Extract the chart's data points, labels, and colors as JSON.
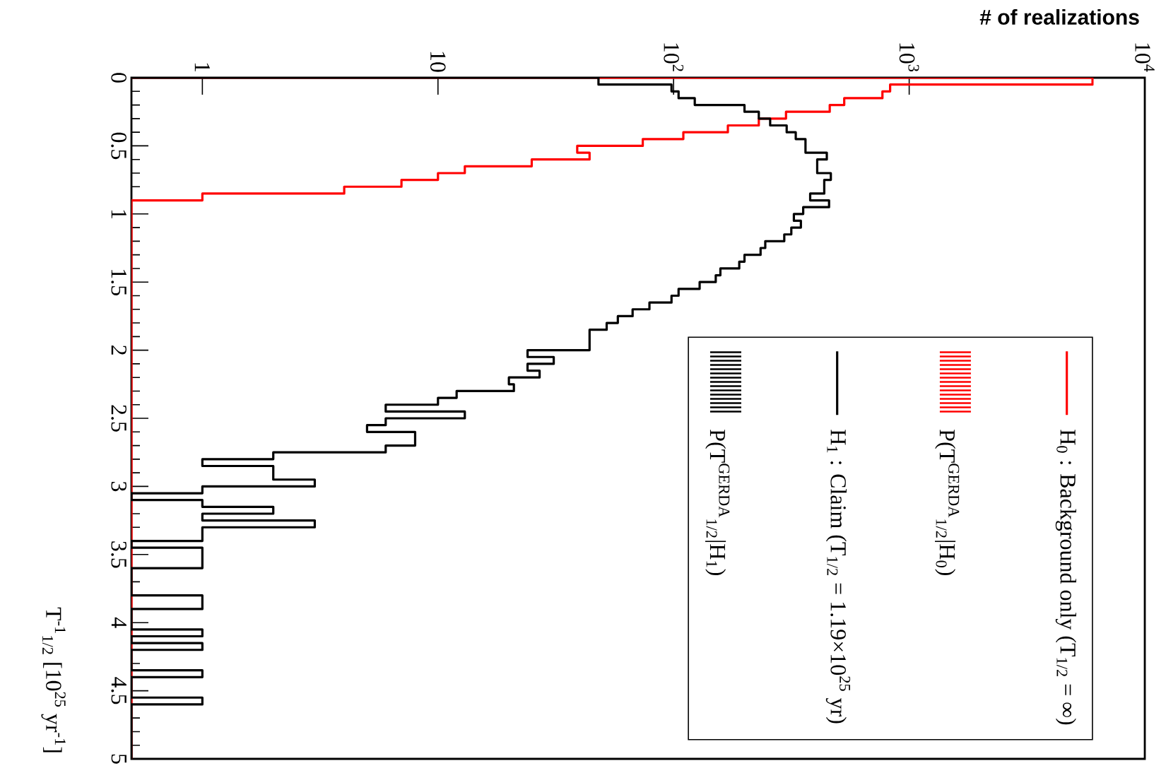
{
  "chart_data": {
    "type": "histogram",
    "orientation": "horizontal",
    "xlabel": "# of realizations",
    "ylabel": "T$^{-1}$$_{1/2}$ [10$^{25}$ yr$^{-1}$]",
    "bins": [
      0,
      0.05,
      0.1,
      0.15,
      0.2,
      0.25,
      0.3,
      0.35,
      0.4,
      0.45,
      0.5,
      0.55,
      0.6,
      0.65,
      0.7,
      0.75,
      0.8,
      0.85,
      0.9,
      0.95,
      1,
      1.05,
      1.1,
      1.15,
      1.2,
      1.25,
      1.3,
      1.35,
      1.4,
      1.45,
      1.5,
      1.55,
      1.6,
      1.65,
      1.7,
      1.75,
      1.8,
      1.85,
      1.9,
      1.95,
      2,
      2.05,
      2.1,
      2.15,
      2.2,
      2.25,
      2.3,
      2.35,
      2.4,
      2.45,
      2.5,
      2.55,
      2.6,
      2.65,
      2.7,
      2.75,
      2.8,
      2.85,
      2.9,
      2.95,
      3,
      3.05,
      3.1,
      3.15,
      3.2,
      3.25,
      3.3,
      3.35,
      3.4,
      3.45,
      3.5,
      3.55,
      3.6,
      3.65,
      3.7,
      3.75,
      3.8,
      3.85,
      3.9,
      3.95,
      4,
      4.05,
      4.1,
      4.15,
      4.2,
      4.25,
      4.3,
      4.35,
      4.4,
      4.45,
      4.5,
      4.55,
      4.6,
      4.65,
      4.7,
      4.75,
      4.8,
      4.85,
      4.9,
      4.95,
      5
    ],
    "series": [
      {
        "name": "H$_{0}$ : Background only (T$_{1/2}$ = ∞)",
        "color": "#ff0000",
        "values": [
          6000,
          830,
          770,
          530,
          460,
          300,
          230,
          170,
          110,
          74,
          39,
          44,
          25,
          13,
          10,
          7,
          4,
          1,
          null,
          null,
          null,
          null,
          null,
          null,
          null,
          null,
          null,
          null,
          null,
          null,
          null,
          null,
          null,
          null,
          null,
          null,
          null,
          null,
          null,
          null,
          null,
          null,
          null,
          null,
          null,
          null,
          null,
          null,
          null,
          null,
          null,
          null,
          null,
          null,
          null,
          null,
          null,
          null,
          null,
          null,
          null,
          null,
          null,
          null,
          null,
          null,
          null,
          null,
          null,
          null,
          null,
          null,
          null,
          null,
          null,
          null,
          null,
          null,
          null,
          null,
          null,
          null,
          null,
          null,
          null,
          null,
          null,
          null,
          null,
          null,
          null,
          null,
          null,
          null,
          null,
          null,
          null,
          null,
          null,
          null
        ]
      },
      {
        "name": "H$_{1}$ : Claim (T$_{1/2}$ = 1.19×10$^{25}$ yr)",
        "color": "#000000",
        "values": [
          48,
          98,
          105,
          123,
          200,
          230,
          257,
          302,
          330,
          363,
          363,
          447,
          407,
          407,
          465,
          436,
          436,
          380,
          457,
          355,
          324,
          347,
          316,
          295,
          245,
          234,
          200,
          190,
          158,
          151,
          129,
          105,
          98,
          79,
          67,
          58,
          52,
          44,
          44,
          44,
          24,
          31,
          24,
          27,
          20,
          21,
          12,
          10,
          6,
          13,
          6,
          5,
          8,
          8,
          6,
          2,
          1,
          2,
          2,
          3,
          1,
          null,
          1,
          2,
          1,
          3,
          1,
          1,
          null,
          1,
          1,
          1,
          null,
          null,
          null,
          null,
          1,
          1,
          null,
          null,
          null,
          1,
          null,
          1,
          null,
          null,
          null,
          1,
          null,
          null,
          null,
          1,
          null,
          null,
          null,
          null,
          null,
          null,
          null,
          null
        ]
      }
    ],
    "annotations": [
      "P(T$^{GERDA}$$_{1/2}$|H$_{0}$)",
      "P(T$^{GERDA}$$_{1/2}$|H$_{1}$)"
    ],
    "xlim": [
      0.5,
      10000
    ],
    "ylim": [
      5,
      0
    ],
    "log": "x",
    "xticks": [
      1,
      10,
      {
        "value": 100,
        "label": "10$^{2}$"
      },
      {
        "value": 1000,
        "label": "10$^{3}$"
      },
      {
        "value": 10000,
        "label": "10$^{4}$"
      }
    ],
    "yticks": [
      0,
      0.5,
      1,
      1.5,
      2,
      2.5,
      3,
      3.5,
      4,
      4.5,
      5
    ],
    "legend": "bottom right"
  }
}
